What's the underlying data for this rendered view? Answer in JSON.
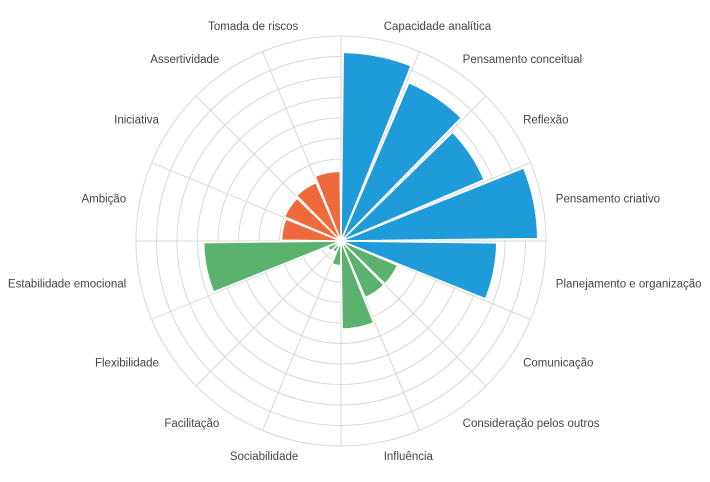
{
  "chart_data": {
    "type": "polar-bar",
    "title": "",
    "rmax": 10,
    "rings": 10,
    "grid": true,
    "legend": "none",
    "categories": [
      "Capacidade analítica",
      "Pensamento conceitual",
      "Reflexão",
      "Pensamento criativo",
      "Planejamento e organização",
      "Comunicação",
      "Consideração pelos outros",
      "Influência",
      "Sociabilidade",
      "Facilitação",
      "Flexibilidade",
      "Estabilidade emocional",
      "Ambição",
      "Iniciativa",
      "Assertividade",
      "Tomada de riscos"
    ],
    "values": [
      9.2,
      8.4,
      7.6,
      9.6,
      7.6,
      3.0,
      3.0,
      4.3,
      1.2,
      0.6,
      0.7,
      6.7,
      2.9,
      3.0,
      3.1,
      3.4
    ],
    "colors": [
      "#1f9bd9",
      "#1f9bd9",
      "#1f9bd9",
      "#1f9bd9",
      "#1f9bd9",
      "#5bb26e",
      "#5bb26e",
      "#5bb26e",
      "#5bb26e",
      "#5bb26e",
      "#5bb26e",
      "#5bb26e",
      "#ee6a3d",
      "#ee6a3d",
      "#ee6a3d",
      "#ee6a3d"
    ]
  }
}
